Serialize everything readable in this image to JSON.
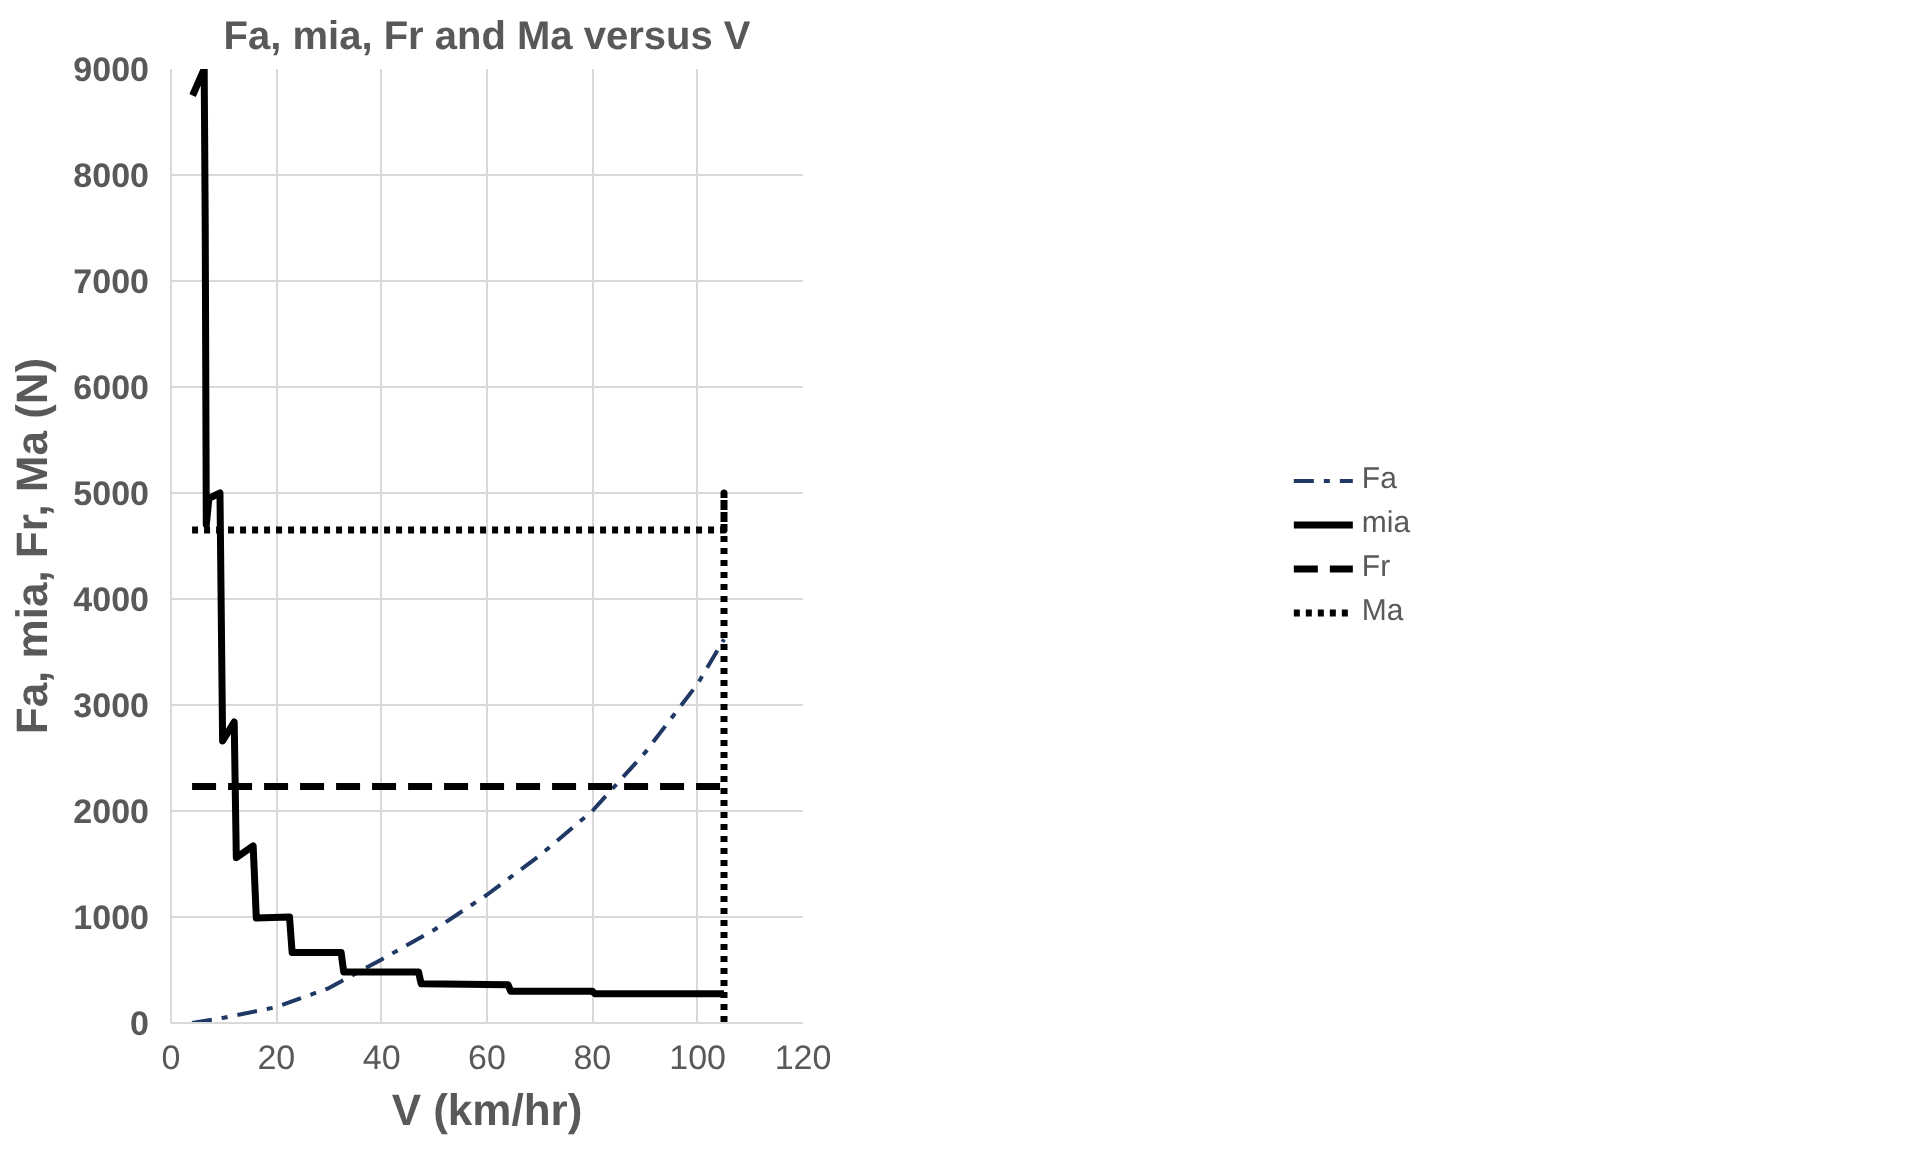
{
  "chart_data": {
    "type": "line",
    "title": "Fa, mia, Fr and Ma versus V",
    "xlabel": "V (km/hr)",
    "ylabel": "Fa, mia, Fr, Ma (N)",
    "xlim": [
      0,
      120
    ],
    "xticks": [
      0,
      20,
      40,
      60,
      80,
      100,
      120
    ],
    "ylim": [
      0,
      9000
    ],
    "yticks": [
      0,
      1000,
      2000,
      3000,
      4000,
      5000,
      6000,
      7000,
      8000,
      9000
    ],
    "grid": true,
    "legend": "right",
    "marker": "none",
    "series": [
      {
        "name": "Fa",
        "color": "#1f3864",
        "line_style": "dashdot",
        "x": [
          4,
          10,
          20,
          30,
          40,
          50,
          60,
          70,
          80,
          90,
          100,
          105
        ],
        "values": [
          0,
          50,
          150,
          330,
          600,
          880,
          1210,
          1580,
          2000,
          2550,
          3200,
          3620
        ]
      },
      {
        "name": "mia",
        "color": "#000000",
        "line_style": "solid",
        "x": [
          4.1,
          6.3,
          6.5,
          6.7,
          7.2,
          9.3,
          9.8,
          12,
          12.4,
          15.6,
          16.2,
          22.5,
          23,
          32.3,
          32.8,
          47,
          47.5,
          64,
          64.5,
          80,
          80.5,
          105
        ],
        "values": [
          8750,
          9000,
          7500,
          4700,
          4950,
          5000,
          2660,
          2840,
          1560,
          1670,
          990,
          1000,
          665,
          665,
          480,
          480,
          370,
          360,
          300,
          300,
          275,
          275
        ]
      },
      {
        "name": "Fr",
        "color": "#000000",
        "line_style": "dashed",
        "x": [
          4,
          105
        ],
        "values": [
          2230,
          2230
        ]
      },
      {
        "name": "Ma",
        "color": "#000000",
        "line_style": "dotted",
        "x": [
          4,
          105,
          105,
          105
        ],
        "values": [
          4650,
          4650,
          5000,
          0
        ]
      }
    ]
  }
}
